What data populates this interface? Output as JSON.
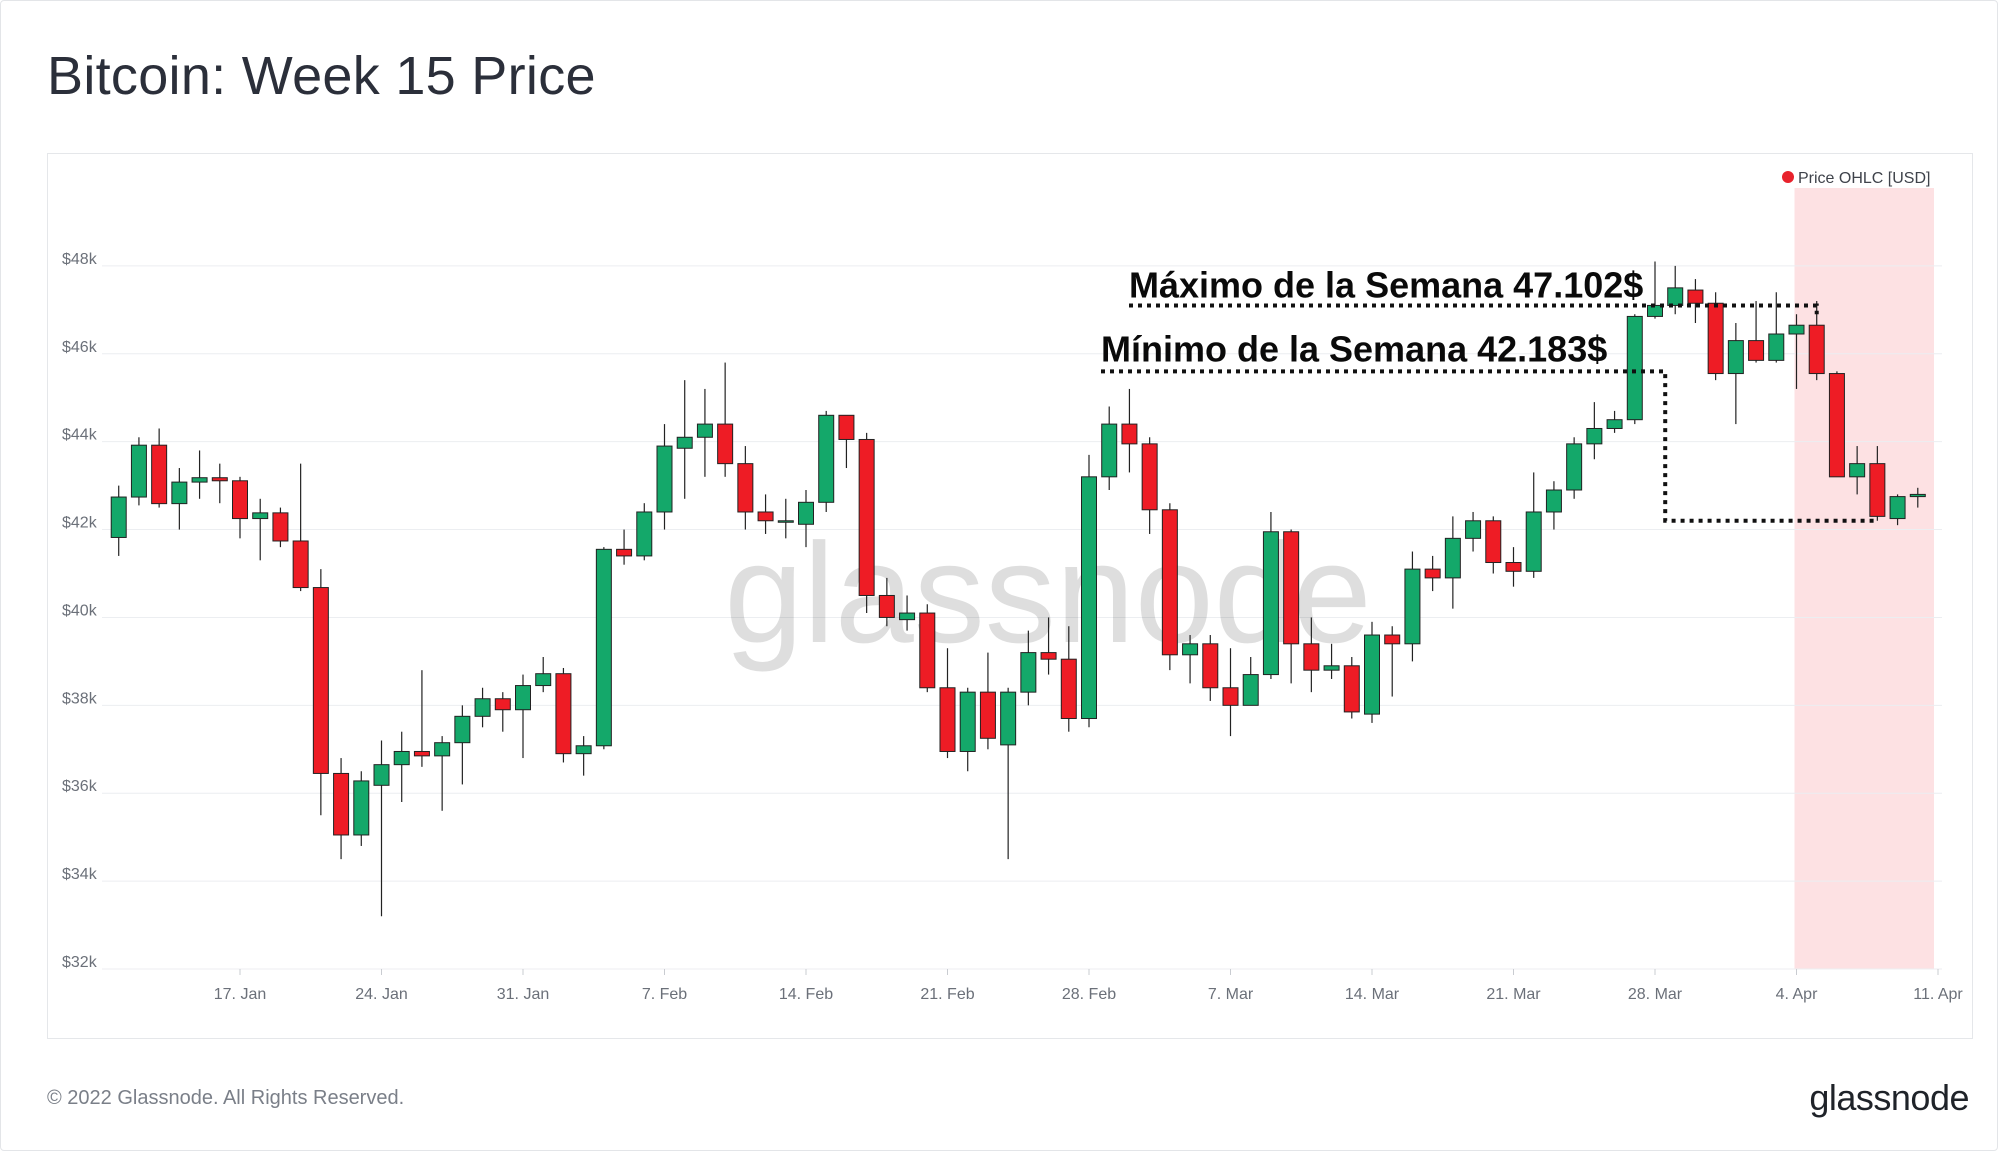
{
  "header": {
    "title": "Bitcoin: Week 15 Price"
  },
  "footer": {
    "copyright": "© 2022 Glassnode. All Rights Reserved.",
    "logo": "glassnode"
  },
  "watermark": "glassnode",
  "colors": {
    "up": "#14a86a",
    "down": "#ee1c25",
    "grid": "#eceef1",
    "axis_text": "#6b7079",
    "highlight": "#fde1e3",
    "legend_dot": "#e8222c"
  },
  "chart_data": {
    "type": "candlestick",
    "title": "Bitcoin: Week 15 Price",
    "legend": {
      "label": "Price OHLC [USD]",
      "position": "top-right"
    },
    "ylim": [
      32000,
      50000
    ],
    "y_ticks": [
      {
        "value": 32000,
        "label": "$32k"
      },
      {
        "value": 34000,
        "label": "$34k"
      },
      {
        "value": 36000,
        "label": "$36k"
      },
      {
        "value": 38000,
        "label": "$38k"
      },
      {
        "value": 40000,
        "label": "$40k"
      },
      {
        "value": 42000,
        "label": "$42k"
      },
      {
        "value": 44000,
        "label": "$44k"
      },
      {
        "value": 46000,
        "label": "$46k"
      },
      {
        "value": 48000,
        "label": "$48k"
      }
    ],
    "x_ticks": [
      {
        "date": "2022-01-17",
        "label": "17. Jan"
      },
      {
        "date": "2022-01-24",
        "label": "24. Jan"
      },
      {
        "date": "2022-01-31",
        "label": "31. Jan"
      },
      {
        "date": "2022-02-07",
        "label": "7. Feb"
      },
      {
        "date": "2022-02-14",
        "label": "14. Feb"
      },
      {
        "date": "2022-02-21",
        "label": "21. Feb"
      },
      {
        "date": "2022-02-28",
        "label": "28. Feb"
      },
      {
        "date": "2022-03-07",
        "label": "7. Mar"
      },
      {
        "date": "2022-03-14",
        "label": "14. Mar"
      },
      {
        "date": "2022-03-21",
        "label": "21. Mar"
      },
      {
        "date": "2022-03-28",
        "label": "28. Mar"
      },
      {
        "date": "2022-04-04",
        "label": "4. Apr"
      },
      {
        "date": "2022-04-11",
        "label": "11. Apr"
      }
    ],
    "highlight_range": [
      "2022-04-04",
      "2022-04-11"
    ],
    "annotations": [
      {
        "text": "Máximo de la Semana 47.102$",
        "value": 47102
      },
      {
        "text": "Mínimo de la Semana 42.183$",
        "value": 42183
      }
    ],
    "candles": [
      {
        "date": "2022-01-11",
        "o": 41820,
        "h": 43000,
        "l": 41400,
        "c": 42740
      },
      {
        "date": "2022-01-12",
        "o": 42740,
        "h": 44100,
        "l": 42550,
        "c": 43920
      },
      {
        "date": "2022-01-13",
        "o": 43920,
        "h": 44300,
        "l": 42500,
        "c": 42590
      },
      {
        "date": "2022-01-14",
        "o": 42590,
        "h": 43400,
        "l": 42000,
        "c": 43080
      },
      {
        "date": "2022-01-15",
        "o": 43080,
        "h": 43800,
        "l": 42700,
        "c": 43180
      },
      {
        "date": "2022-01-16",
        "o": 43180,
        "h": 43500,
        "l": 42600,
        "c": 43110
      },
      {
        "date": "2022-01-17",
        "o": 43110,
        "h": 43200,
        "l": 41800,
        "c": 42250
      },
      {
        "date": "2022-01-18",
        "o": 42250,
        "h": 42700,
        "l": 41300,
        "c": 42380
      },
      {
        "date": "2022-01-19",
        "o": 42380,
        "h": 42500,
        "l": 41600,
        "c": 41740
      },
      {
        "date": "2022-01-20",
        "o": 41740,
        "h": 43500,
        "l": 40600,
        "c": 40680
      },
      {
        "date": "2022-01-21",
        "o": 40680,
        "h": 41100,
        "l": 35500,
        "c": 36450
      },
      {
        "date": "2022-01-22",
        "o": 36450,
        "h": 36800,
        "l": 34500,
        "c": 35050
      },
      {
        "date": "2022-01-23",
        "o": 35050,
        "h": 36500,
        "l": 34800,
        "c": 36280
      },
      {
        "date": "2022-01-24",
        "o": 36180,
        "h": 37200,
        "l": 33200,
        "c": 36650
      },
      {
        "date": "2022-01-25",
        "o": 36650,
        "h": 37400,
        "l": 35800,
        "c": 36950
      },
      {
        "date": "2022-01-26",
        "o": 36950,
        "h": 38800,
        "l": 36600,
        "c": 36850
      },
      {
        "date": "2022-01-27",
        "o": 36850,
        "h": 37300,
        "l": 35600,
        "c": 37150
      },
      {
        "date": "2022-01-28",
        "o": 37150,
        "h": 38000,
        "l": 36200,
        "c": 37750
      },
      {
        "date": "2022-01-29",
        "o": 37750,
        "h": 38400,
        "l": 37500,
        "c": 38150
      },
      {
        "date": "2022-01-30",
        "o": 38150,
        "h": 38300,
        "l": 37400,
        "c": 37900
      },
      {
        "date": "2022-01-31",
        "o": 37900,
        "h": 38700,
        "l": 36800,
        "c": 38450
      },
      {
        "date": "2022-02-01",
        "o": 38450,
        "h": 39100,
        "l": 38300,
        "c": 38720
      },
      {
        "date": "2022-02-02",
        "o": 38720,
        "h": 38850,
        "l": 36700,
        "c": 36900
      },
      {
        "date": "2022-02-03",
        "o": 36900,
        "h": 37300,
        "l": 36400,
        "c": 37080
      },
      {
        "date": "2022-02-04",
        "o": 37080,
        "h": 41600,
        "l": 37000,
        "c": 41550
      },
      {
        "date": "2022-02-05",
        "o": 41550,
        "h": 42000,
        "l": 41200,
        "c": 41400
      },
      {
        "date": "2022-02-06",
        "o": 41400,
        "h": 42600,
        "l": 41300,
        "c": 42400
      },
      {
        "date": "2022-02-07",
        "o": 42400,
        "h": 44400,
        "l": 42000,
        "c": 43900
      },
      {
        "date": "2022-02-08",
        "o": 43850,
        "h": 45400,
        "l": 42700,
        "c": 44100
      },
      {
        "date": "2022-02-09",
        "o": 44100,
        "h": 45200,
        "l": 43200,
        "c": 44400
      },
      {
        "date": "2022-02-10",
        "o": 44400,
        "h": 45800,
        "l": 43200,
        "c": 43500
      },
      {
        "date": "2022-02-11",
        "o": 43500,
        "h": 43900,
        "l": 42000,
        "c": 42400
      },
      {
        "date": "2022-02-12",
        "o": 42400,
        "h": 42800,
        "l": 41900,
        "c": 42200
      },
      {
        "date": "2022-02-13",
        "o": 42200,
        "h": 42700,
        "l": 41800,
        "c": 42200
      },
      {
        "date": "2022-02-14",
        "o": 42120,
        "h": 42900,
        "l": 41600,
        "c": 42620
      },
      {
        "date": "2022-02-15",
        "o": 42620,
        "h": 44700,
        "l": 42400,
        "c": 44600
      },
      {
        "date": "2022-02-16",
        "o": 44600,
        "h": 44600,
        "l": 43400,
        "c": 44050
      },
      {
        "date": "2022-02-17",
        "o": 44050,
        "h": 44200,
        "l": 40100,
        "c": 40500
      },
      {
        "date": "2022-02-18",
        "o": 40500,
        "h": 40900,
        "l": 39800,
        "c": 40000
      },
      {
        "date": "2022-02-19",
        "o": 39950,
        "h": 40500,
        "l": 39700,
        "c": 40100
      },
      {
        "date": "2022-02-20",
        "o": 40100,
        "h": 40300,
        "l": 38300,
        "c": 38400
      },
      {
        "date": "2022-02-21",
        "o": 38400,
        "h": 39300,
        "l": 36800,
        "c": 36950
      },
      {
        "date": "2022-02-22",
        "o": 36950,
        "h": 38400,
        "l": 36500,
        "c": 38300
      },
      {
        "date": "2022-02-23",
        "o": 38300,
        "h": 39200,
        "l": 37000,
        "c": 37250
      },
      {
        "date": "2022-02-24",
        "o": 37100,
        "h": 38400,
        "l": 34500,
        "c": 38300
      },
      {
        "date": "2022-02-25",
        "o": 38300,
        "h": 39700,
        "l": 38000,
        "c": 39200
      },
      {
        "date": "2022-02-26",
        "o": 39200,
        "h": 40000,
        "l": 38700,
        "c": 39050
      },
      {
        "date": "2022-02-27",
        "o": 39050,
        "h": 39800,
        "l": 37400,
        "c": 37700
      },
      {
        "date": "2022-02-28",
        "o": 37700,
        "h": 43700,
        "l": 37500,
        "c": 43200
      },
      {
        "date": "2022-03-01",
        "o": 43200,
        "h": 44800,
        "l": 42900,
        "c": 44400
      },
      {
        "date": "2022-03-02",
        "o": 44400,
        "h": 45200,
        "l": 43300,
        "c": 43950
      },
      {
        "date": "2022-03-03",
        "o": 43950,
        "h": 44100,
        "l": 41900,
        "c": 42450
      },
      {
        "date": "2022-03-04",
        "o": 42450,
        "h": 42600,
        "l": 38800,
        "c": 39150
      },
      {
        "date": "2022-03-05",
        "o": 39150,
        "h": 39600,
        "l": 38500,
        "c": 39400
      },
      {
        "date": "2022-03-06",
        "o": 39400,
        "h": 39600,
        "l": 38100,
        "c": 38400
      },
      {
        "date": "2022-03-07",
        "o": 38400,
        "h": 39300,
        "l": 37300,
        "c": 38000
      },
      {
        "date": "2022-03-08",
        "o": 38000,
        "h": 39100,
        "l": 38000,
        "c": 38700
      },
      {
        "date": "2022-03-09",
        "o": 38700,
        "h": 42400,
        "l": 38600,
        "c": 41950
      },
      {
        "date": "2022-03-10",
        "o": 41950,
        "h": 42000,
        "l": 38500,
        "c": 39400
      },
      {
        "date": "2022-03-11",
        "o": 39400,
        "h": 40000,
        "l": 38300,
        "c": 38800
      },
      {
        "date": "2022-03-12",
        "o": 38800,
        "h": 39400,
        "l": 38600,
        "c": 38900
      },
      {
        "date": "2022-03-13",
        "o": 38900,
        "h": 39100,
        "l": 37700,
        "c": 37850
      },
      {
        "date": "2022-03-14",
        "o": 37800,
        "h": 39900,
        "l": 37600,
        "c": 39600
      },
      {
        "date": "2022-03-15",
        "o": 39600,
        "h": 39800,
        "l": 38200,
        "c": 39400
      },
      {
        "date": "2022-03-16",
        "o": 39400,
        "h": 41500,
        "l": 39000,
        "c": 41100
      },
      {
        "date": "2022-03-17",
        "o": 41100,
        "h": 41400,
        "l": 40600,
        "c": 40900
      },
      {
        "date": "2022-03-18",
        "o": 40900,
        "h": 42300,
        "l": 40200,
        "c": 41800
      },
      {
        "date": "2022-03-19",
        "o": 41800,
        "h": 42400,
        "l": 41500,
        "c": 42200
      },
      {
        "date": "2022-03-20",
        "o": 42200,
        "h": 42300,
        "l": 41000,
        "c": 41250
      },
      {
        "date": "2022-03-21",
        "o": 41250,
        "h": 41600,
        "l": 40700,
        "c": 41050
      },
      {
        "date": "2022-03-22",
        "o": 41050,
        "h": 43300,
        "l": 40900,
        "c": 42400
      },
      {
        "date": "2022-03-23",
        "o": 42400,
        "h": 43100,
        "l": 42000,
        "c": 42900
      },
      {
        "date": "2022-03-24",
        "o": 42900,
        "h": 44100,
        "l": 42700,
        "c": 43950
      },
      {
        "date": "2022-03-25",
        "o": 43950,
        "h": 44900,
        "l": 43600,
        "c": 44300
      },
      {
        "date": "2022-03-26",
        "o": 44300,
        "h": 44700,
        "l": 44200,
        "c": 44500
      },
      {
        "date": "2022-03-27",
        "o": 44500,
        "h": 46900,
        "l": 44400,
        "c": 46850
      },
      {
        "date": "2022-03-28",
        "o": 46850,
        "h": 48100,
        "l": 46800,
        "c": 47100
      },
      {
        "date": "2022-03-29",
        "o": 47100,
        "h": 48000,
        "l": 46900,
        "c": 47500
      },
      {
        "date": "2022-03-30",
        "o": 47450,
        "h": 47700,
        "l": 46700,
        "c": 47150
      },
      {
        "date": "2022-03-31",
        "o": 47150,
        "h": 47400,
        "l": 45400,
        "c": 45550
      },
      {
        "date": "2022-04-01",
        "o": 45550,
        "h": 46700,
        "l": 44400,
        "c": 46300
      },
      {
        "date": "2022-04-02",
        "o": 46300,
        "h": 47200,
        "l": 45800,
        "c": 45850
      },
      {
        "date": "2022-04-03",
        "o": 45850,
        "h": 47400,
        "l": 45800,
        "c": 46450
      },
      {
        "date": "2022-04-04",
        "o": 46450,
        "h": 46900,
        "l": 45200,
        "c": 46650
      },
      {
        "date": "2022-04-05",
        "o": 46650,
        "h": 47200,
        "l": 45400,
        "c": 45550
      },
      {
        "date": "2022-04-06",
        "o": 45550,
        "h": 45600,
        "l": 43200,
        "c": 43200
      },
      {
        "date": "2022-04-07",
        "o": 43200,
        "h": 43900,
        "l": 42800,
        "c": 43500
      },
      {
        "date": "2022-04-08",
        "o": 43500,
        "h": 43900,
        "l": 42200,
        "c": 42300
      },
      {
        "date": "2022-04-09",
        "o": 42250,
        "h": 42800,
        "l": 42100,
        "c": 42750
      },
      {
        "date": "2022-04-10",
        "o": 42750,
        "h": 42950,
        "l": 42500,
        "c": 42800
      }
    ]
  }
}
